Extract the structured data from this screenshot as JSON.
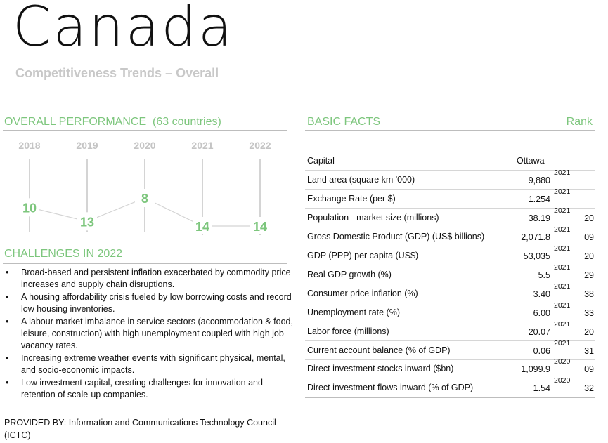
{
  "header": {
    "title": "Canada",
    "subtitle": "Competitiveness Trends – Overall"
  },
  "performance": {
    "heading": "OVERALL PERFORMANCE",
    "note": "(63 countries)",
    "years": [
      "2018",
      "2019",
      "2020",
      "2021",
      "2022"
    ],
    "ranks": [
      10,
      13,
      8,
      14,
      14
    ]
  },
  "challenges": {
    "heading": "CHALLENGES IN 2022",
    "items": [
      "Broad-based and persistent inflation exacerbated by commodity price increases and supply chain disruptions.",
      "A housing affordability crisis fueled by low borrowing costs and record low housing inventories.",
      "A labour market imbalance in service sectors (accommodation & food, leisure, construction) with high unemployment coupled with high job vacancy rates.",
      "Increasing extreme weather events with significant physical, mental, and socio-economic impacts.",
      "Low investment capital, creating challenges for innovation and retention of scale-up companies."
    ]
  },
  "basic_facts": {
    "heading": "BASIC FACTS",
    "rank_heading": "Rank",
    "rows": [
      {
        "label": "Capital",
        "value": "Ottawa"
      },
      {
        "label": "Land area (square km '000)",
        "value": "9,880",
        "year": "2021"
      },
      {
        "label": "Exchange Rate (per $)",
        "value": "1.254",
        "year": "2021"
      },
      {
        "label": "Population - market size (millions)",
        "value": "38.19",
        "year": "2021",
        "rank": "20"
      },
      {
        "label": "Gross Domestic Product (GDP) (US$ billions)",
        "value": "2,071.8",
        "year": "2021",
        "rank": "09"
      },
      {
        "label": "GDP (PPP) per capita (US$)",
        "value": "53,035",
        "year": "2021",
        "rank": "20"
      },
      {
        "label": "Real GDP growth (%)",
        "value": "5.5",
        "year": "2021",
        "rank": "29"
      },
      {
        "label": "Consumer price inflation (%)",
        "value": "3.40",
        "year": "2021",
        "rank": "38"
      },
      {
        "label": "Unemployment rate (%)",
        "value": "6.00",
        "year": "2021",
        "rank": "33"
      },
      {
        "label": "Labor force (millions)",
        "value": "20.07",
        "year": "2021",
        "rank": "20"
      },
      {
        "label": "Current account balance (% of GDP)",
        "value": "0.06",
        "year": "2021",
        "rank": "31"
      },
      {
        "label": "Direct investment stocks inward ($bn)",
        "value": "1,099.9",
        "year": "2020",
        "rank": "09"
      },
      {
        "label": "Direct investment flows inward (% of GDP)",
        "value": "1.54",
        "year": "2020",
        "rank": "32"
      }
    ]
  },
  "footer": {
    "text": "PROVIDED BY: Information and Communications Technology Council (ICTC)"
  }
}
